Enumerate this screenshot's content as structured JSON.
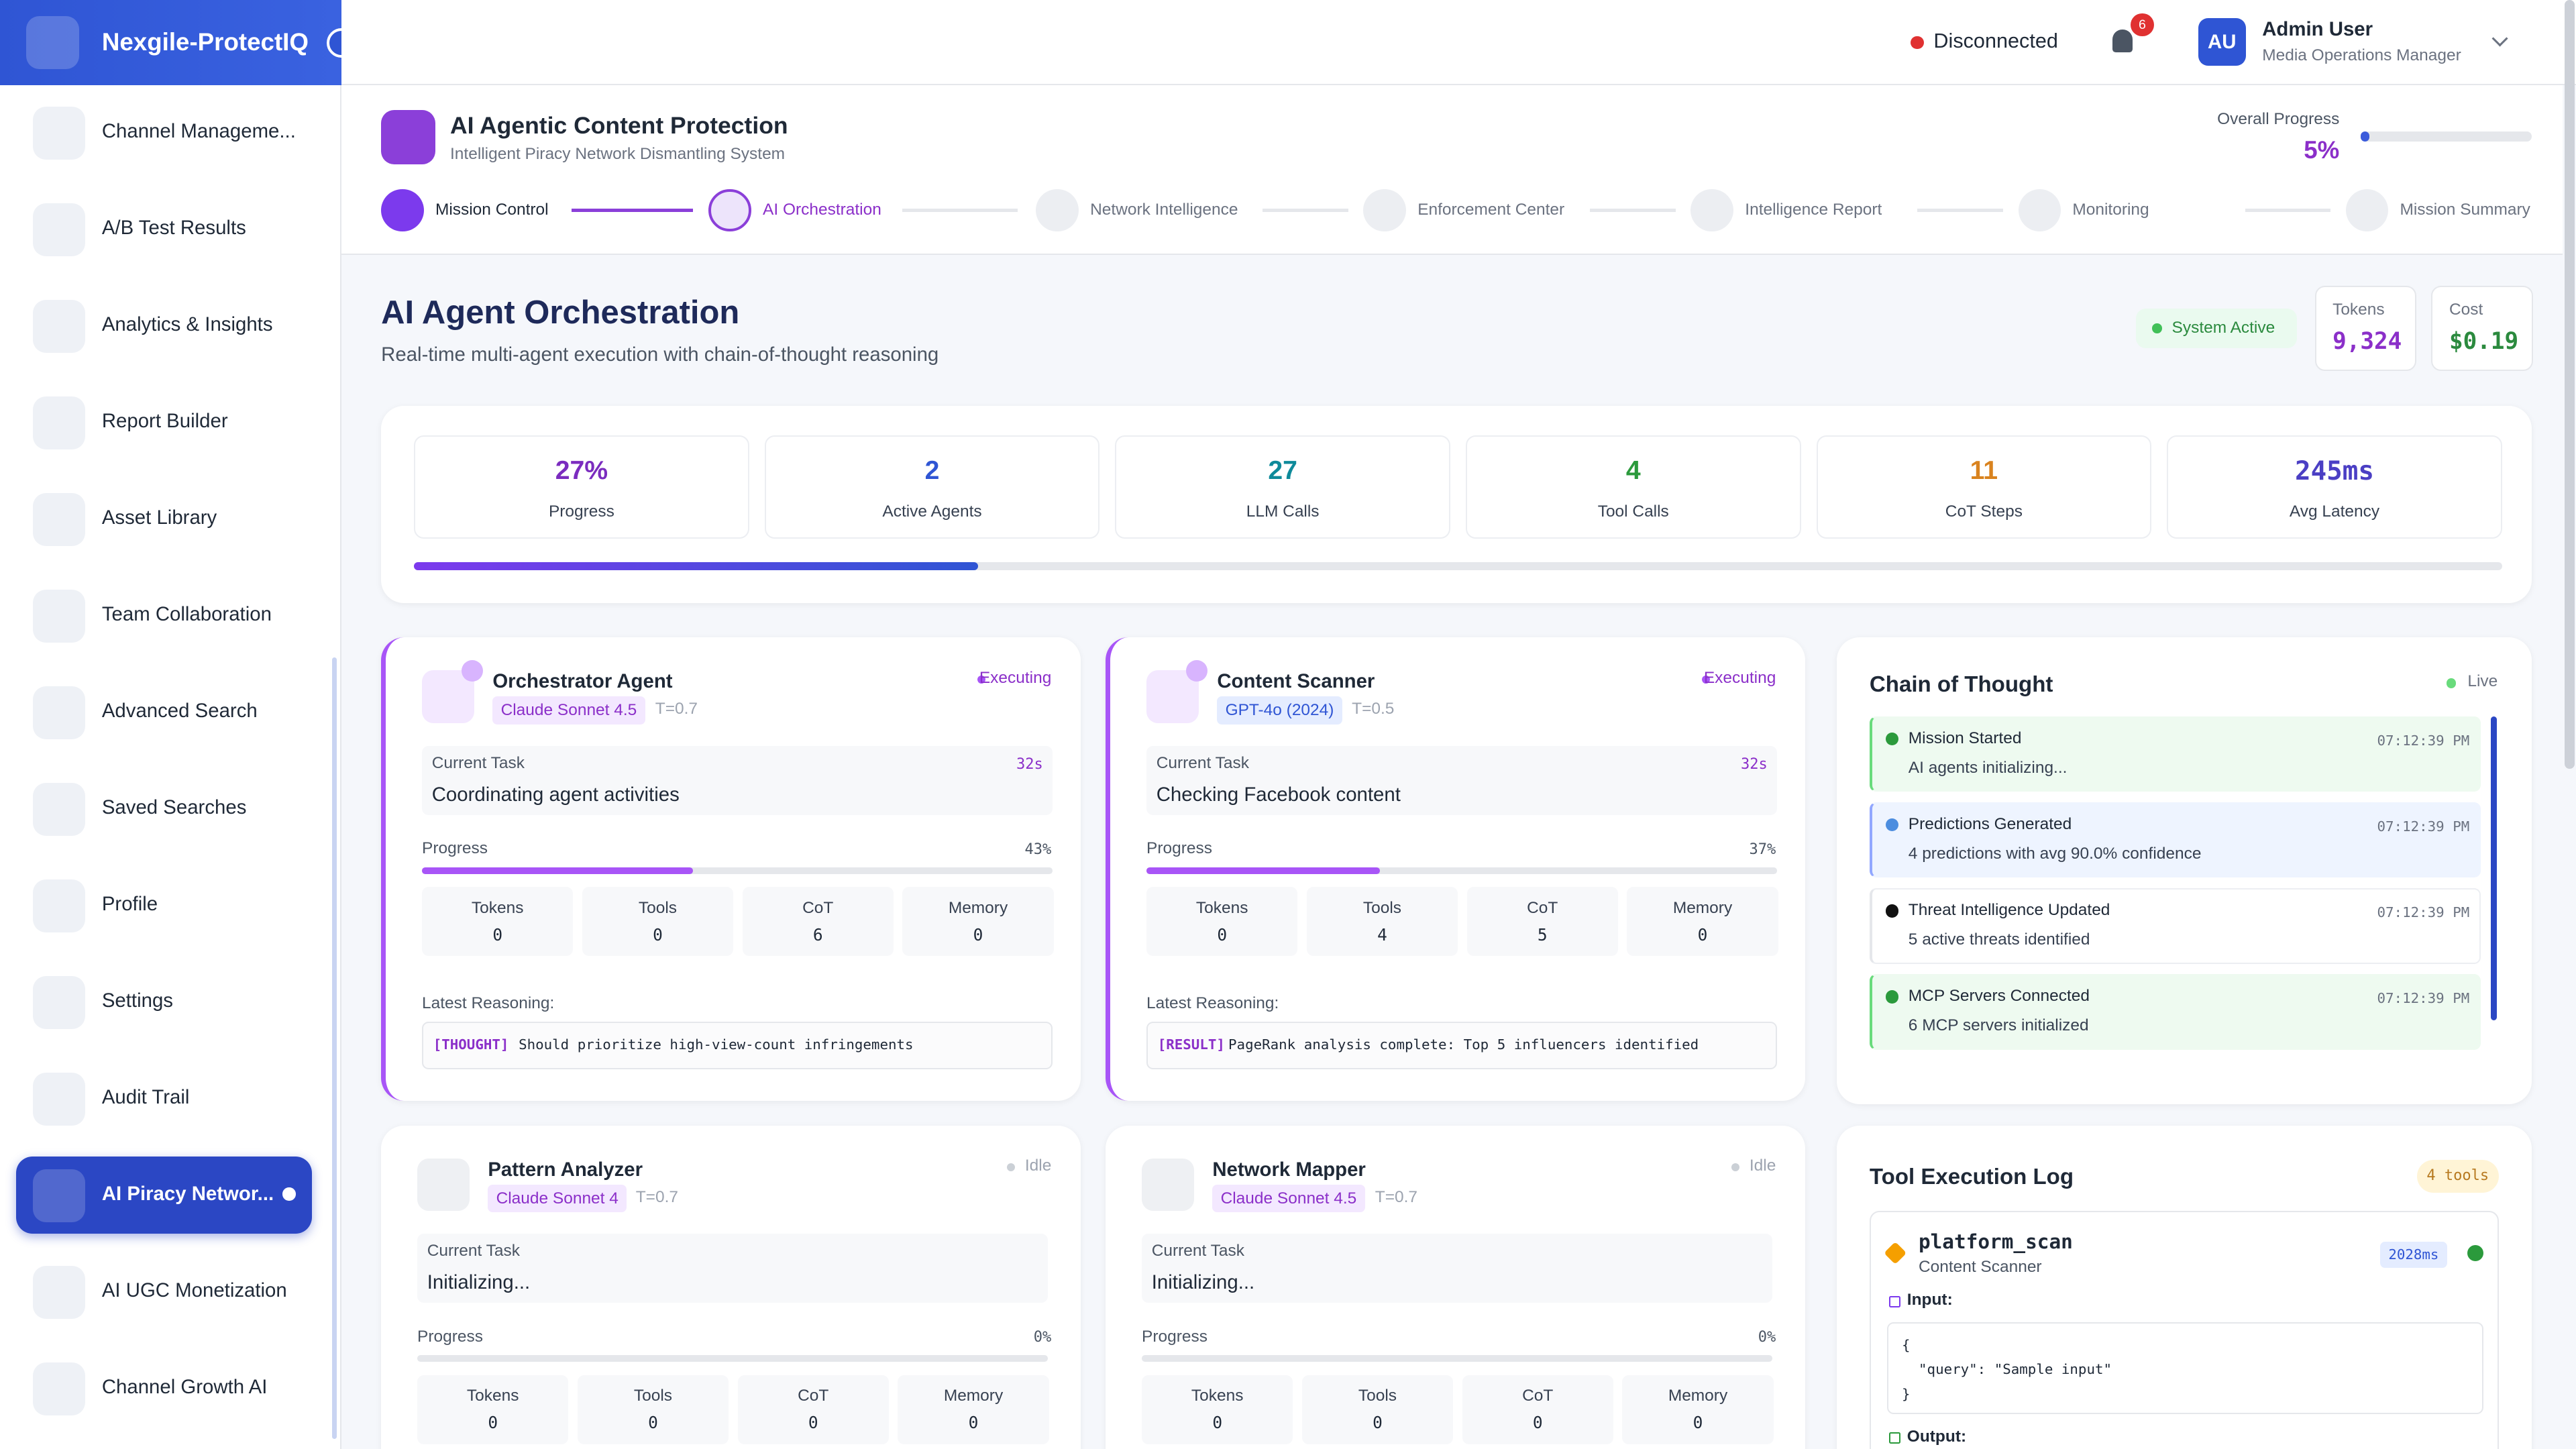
{
  "brand": "Nexgile-ProtectIQ",
  "sidebar": [
    "Channel Manageme...",
    "A/B Test Results",
    "Analytics & Insights",
    "Report Builder",
    "Asset Library",
    "Team Collaboration",
    "Advanced Search",
    "Saved Searches",
    "Profile",
    "Settings",
    "Audit Trail",
    "AI Piracy Networ...",
    "AI UGC Monetization",
    "Channel Growth AI"
  ],
  "header": {
    "status": "Disconnected",
    "notifications": "6",
    "initials": "AU",
    "user": "Admin User",
    "role": "Media Operations Manager"
  },
  "banner": {
    "title": "AI Agentic Content Protection",
    "subtitle": "Intelligent Piracy Network Dismantling System",
    "progress_label": "Overall Progress",
    "progress": "5%"
  },
  "steps": [
    "Mission Control",
    "AI Orchestration",
    "Network Intelligence",
    "Enforcement Center",
    "Intelligence Report",
    "Monitoring",
    "Mission Summary"
  ],
  "section": {
    "title": "AI Agent Orchestration",
    "subtitle": "Real-time multi-agent execution with chain-of-thought reasoning",
    "system": "System Active",
    "tokens_label": "Tokens",
    "tokens": "9,324",
    "cost_label": "Cost",
    "cost": "$0.19"
  },
  "stats": [
    {
      "value": "27%",
      "label": "Progress"
    },
    {
      "value": "2",
      "label": "Active Agents"
    },
    {
      "value": "27",
      "label": "LLM Calls"
    },
    {
      "value": "4",
      "label": "Tool Calls"
    },
    {
      "value": "11",
      "label": "CoT Steps"
    },
    {
      "value": "245ms",
      "label": "Avg Latency"
    }
  ],
  "agent_labels": {
    "task": "Current Task",
    "progress": "Progress",
    "reasoning": "Latest Reasoning:",
    "metrics": [
      "Tokens",
      "Tools",
      "CoT",
      "Memory"
    ]
  },
  "agents": [
    {
      "name": "Orchestrator Agent",
      "model": "Claude Sonnet 4.5",
      "temp": "T=0.7",
      "status": "Executing",
      "task": "Coordinating agent activities",
      "time": "32s",
      "progress": "43%",
      "metrics": [
        "0",
        "0",
        "6",
        "0"
      ],
      "tag": "[THOUGHT]",
      "reasoning": "Should prioritize high-view-count infringements"
    },
    {
      "name": "Content Scanner",
      "model": "GPT-4o (2024)",
      "temp": "T=0.5",
      "status": "Executing",
      "task": "Checking Facebook content",
      "time": "32s",
      "progress": "37%",
      "metrics": [
        "0",
        "4",
        "5",
        "0"
      ],
      "tag": "[RESULT]",
      "reasoning": "PageRank analysis complete: Top 5 influencers identified"
    },
    {
      "name": "Pattern Analyzer",
      "model": "Claude Sonnet 4",
      "temp": "T=0.7",
      "status": "Idle",
      "task": "Initializing...",
      "progress": "0%",
      "metrics": [
        "0",
        "0",
        "0",
        "0"
      ]
    },
    {
      "name": "Network Mapper",
      "model": "Claude Sonnet 4.5",
      "temp": "T=0.7",
      "status": "Idle",
      "task": "Initializing...",
      "progress": "0%",
      "metrics": [
        "0",
        "0",
        "0",
        "0"
      ]
    }
  ],
  "chain": {
    "title": "Chain of Thought",
    "live": "Live",
    "items": [
      {
        "title": "Mission Started",
        "time": "07:12:39 PM",
        "desc": "AI agents initializing..."
      },
      {
        "title": "Predictions Generated",
        "time": "07:12:39 PM",
        "desc": "4 predictions with avg 90.0% confidence"
      },
      {
        "title": "Threat Intelligence Updated",
        "time": "07:12:39 PM",
        "desc": "5 active threats identified"
      },
      {
        "title": "MCP Servers Connected",
        "time": "07:12:39 PM",
        "desc": "6 MCP servers initialized"
      }
    ]
  },
  "tools": {
    "title": "Tool Execution Log",
    "count": "4 tools",
    "entry": {
      "name": "platform_scan",
      "agent": "Content Scanner",
      "duration": "2028ms",
      "input_label": "Input:",
      "input": [
        "{",
        "  \"query\": \"Sample input\"",
        "}"
      ],
      "output_label": "Output:"
    }
  }
}
